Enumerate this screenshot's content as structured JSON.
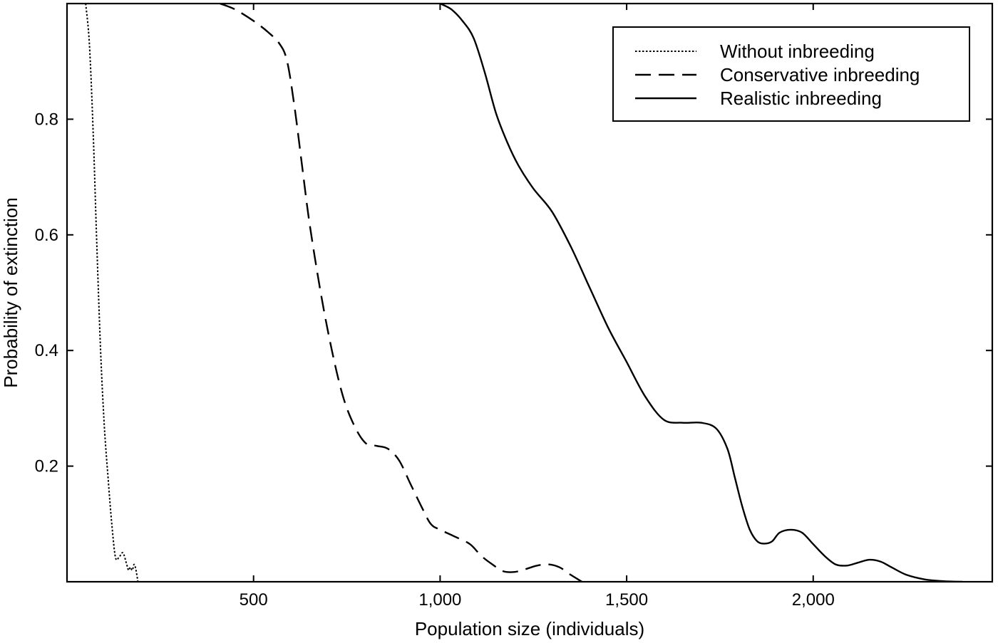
{
  "chart_data": {
    "type": "line",
    "title": "",
    "xlabel": "Population size (individuals)",
    "ylabel": "Probability of extinction",
    "xlim": [
      0,
      2480
    ],
    "ylim": [
      0,
      1
    ],
    "xticks": [
      {
        "value": 500,
        "label": "500"
      },
      {
        "value": 1000,
        "label": "1,000"
      },
      {
        "value": 1500,
        "label": "1,500"
      },
      {
        "value": 2000,
        "label": "2,000"
      }
    ],
    "yticks": [
      {
        "value": 0.2,
        "label": "0.2"
      },
      {
        "value": 0.4,
        "label": "0.4"
      },
      {
        "value": 0.6,
        "label": "0.6"
      },
      {
        "value": 0.8,
        "label": "0.8"
      }
    ],
    "grid": false,
    "legend_position": "top-right",
    "series": [
      {
        "name": "Without inbreeding",
        "style": "dotted",
        "color": "#000000",
        "x": [
          50,
          60,
          70,
          80,
          90,
          100,
          110,
          120,
          130,
          140,
          150,
          160,
          165,
          170,
          175,
          180,
          185,
          190
        ],
        "y": [
          1.0,
          0.93,
          0.78,
          0.58,
          0.4,
          0.27,
          0.18,
          0.1,
          0.042,
          0.043,
          0.05,
          0.03,
          0.02,
          0.025,
          0.02,
          0.03,
          0.02,
          0.0
        ]
      },
      {
        "name": "Conservative inbreeding",
        "style": "dashed",
        "color": "#000000",
        "x": [
          410,
          450,
          500,
          540,
          570,
          590,
          610,
          630,
          650,
          680,
          710,
          740,
          770,
          800,
          830,
          860,
          890,
          920,
          950,
          975,
          1000,
          1040,
          1080,
          1110,
          1140,
          1170,
          1200,
          1230,
          1260,
          1290,
          1320,
          1350,
          1380
        ],
        "y": [
          1.0,
          0.99,
          0.97,
          0.95,
          0.93,
          0.9,
          0.82,
          0.72,
          0.62,
          0.5,
          0.4,
          0.32,
          0.27,
          0.24,
          0.235,
          0.23,
          0.21,
          0.17,
          0.13,
          0.1,
          0.09,
          0.078,
          0.065,
          0.045,
          0.03,
          0.018,
          0.017,
          0.022,
          0.028,
          0.03,
          0.025,
          0.012,
          0.0
        ]
      },
      {
        "name": "Realistic inbreeding",
        "style": "solid",
        "color": "#000000",
        "x": [
          1000,
          1030,
          1060,
          1090,
          1120,
          1150,
          1180,
          1210,
          1250,
          1300,
          1350,
          1400,
          1450,
          1500,
          1550,
          1600,
          1650,
          1700,
          1740,
          1770,
          1790,
          1810,
          1830,
          1850,
          1870,
          1890,
          1910,
          1940,
          1970,
          2000,
          2030,
          2060,
          2090,
          2120,
          2150,
          2180,
          2210,
          2250,
          2300,
          2350,
          2400
        ],
        "y": [
          1.0,
          0.99,
          0.97,
          0.94,
          0.88,
          0.81,
          0.76,
          0.72,
          0.68,
          0.64,
          0.58,
          0.51,
          0.44,
          0.38,
          0.32,
          0.28,
          0.275,
          0.275,
          0.265,
          0.23,
          0.18,
          0.13,
          0.09,
          0.07,
          0.066,
          0.07,
          0.085,
          0.09,
          0.085,
          0.065,
          0.045,
          0.03,
          0.028,
          0.033,
          0.038,
          0.035,
          0.025,
          0.012,
          0.004,
          0.001,
          0.0
        ]
      }
    ]
  }
}
